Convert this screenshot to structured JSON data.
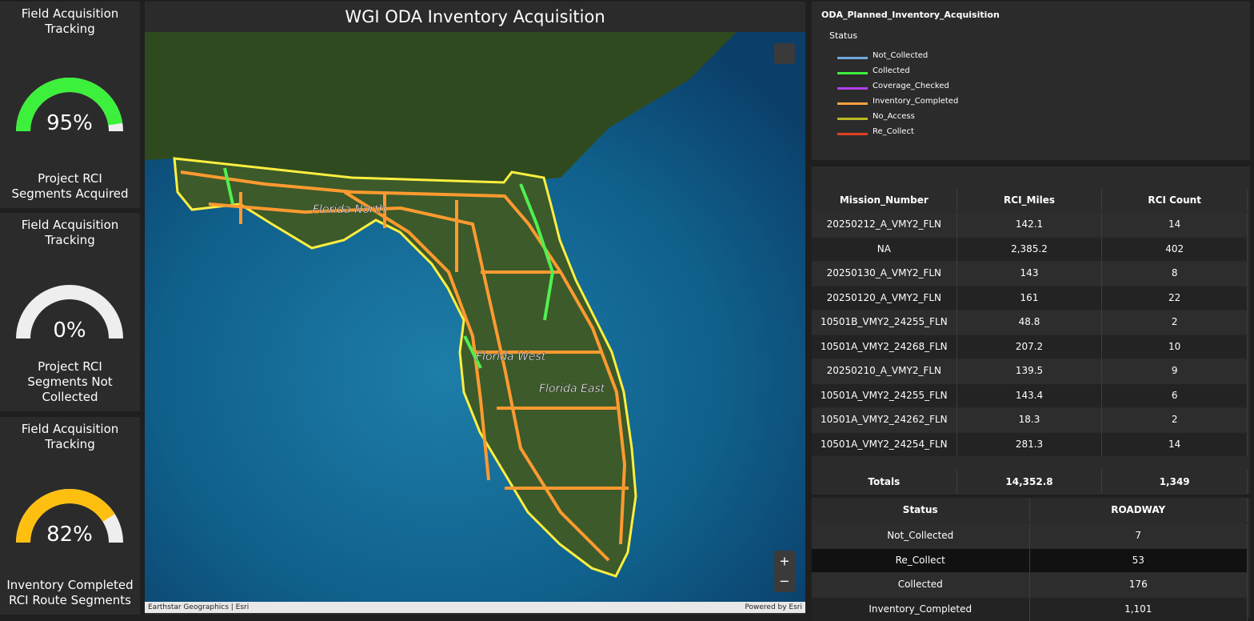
{
  "gauges": [
    {
      "title": "Field Acquisition Tracking",
      "value": 95,
      "value_label": "95%",
      "range": [
        0,
        100
      ],
      "subtitle": "Project RCI Segments Acquired",
      "color": "#3cf03c"
    },
    {
      "title": "Field Acquisition Tracking",
      "value": 0,
      "value_label": "0%",
      "range": [
        0,
        100
      ],
      "subtitle": "Project RCI Segments Not Collected",
      "color": "#4aa3df"
    },
    {
      "title": "Field Acquisition Tracking",
      "value": 82,
      "value_label": "82%",
      "range": [
        0,
        100
      ],
      "subtitle": "Inventory Completed RCI Route Segments",
      "color": "#ffbf10"
    }
  ],
  "map": {
    "title": "WGI ODA Inventory Acquisition",
    "labels": [
      "Florida North",
      "Florida West",
      "Florida East"
    ],
    "attribution": "Earthstar Geographics | Esri",
    "powered_by": "Powered by Esri",
    "zoom_in": "+",
    "zoom_out": "−"
  },
  "legend": {
    "title": "ODA_Planned_Inventory_Acquisition",
    "field": "Status",
    "items": [
      {
        "name": "Not_Collected",
        "color": "#6fa8dc"
      },
      {
        "name": "Collected",
        "color": "#3cf03c"
      },
      {
        "name": "Coverage_Checked",
        "color": "#b040f0"
      },
      {
        "name": "Inventory_Completed",
        "color": "#ffa040"
      },
      {
        "name": "No_Access",
        "color": "#b8b820"
      },
      {
        "name": "Re_Collect",
        "color": "#e04020"
      }
    ]
  },
  "mission_table": {
    "columns": [
      "Mission_Number",
      "RCI_Miles",
      "RCI Count"
    ],
    "rows": [
      [
        "20250212_A_VMY2_FLN",
        "142.1",
        "14"
      ],
      [
        "NA",
        "2,385.2",
        "402"
      ],
      [
        "20250130_A_VMY2_FLN",
        "143",
        "8"
      ],
      [
        "20250120_A_VMY2_FLN",
        "161",
        "22"
      ],
      [
        "10501B_VMY2_24255_FLN",
        "48.8",
        "2"
      ],
      [
        "10501A_VMY2_24268_FLN",
        "207.2",
        "10"
      ],
      [
        "20250210_A_VMY2_FLN",
        "139.5",
        "9"
      ],
      [
        "10501A_VMY2_24255_FLN",
        "143.4",
        "6"
      ],
      [
        "10501A_VMY2_24262_FLN",
        "18.3",
        "2"
      ],
      [
        "10501A_VMY2_24254_FLN",
        "281.3",
        "14"
      ]
    ],
    "totals": [
      "Totals",
      "14,352.8",
      "1,349"
    ]
  },
  "status_table": {
    "columns": [
      "Status",
      "ROADWAY"
    ],
    "rows": [
      [
        "Not_Collected",
        "7"
      ],
      [
        "Re_Collect",
        "53"
      ],
      [
        "Collected",
        "176"
      ],
      [
        "Inventory_Completed",
        "1,101"
      ]
    ]
  }
}
